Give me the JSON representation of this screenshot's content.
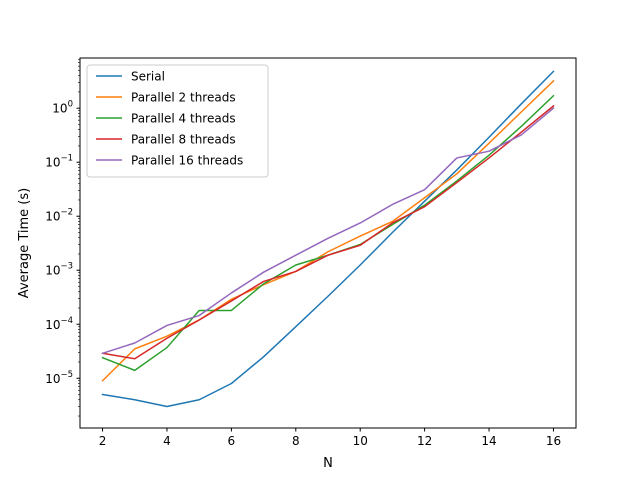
{
  "chart_data": {
    "type": "line",
    "xlabel": "N",
    "ylabel": "Average Time (s)",
    "yscale": "log",
    "xlim": [
      1.3,
      16.7
    ],
    "ylim": [
      1.2e-06,
      8.5
    ],
    "xticks": [
      2,
      4,
      6,
      8,
      10,
      12,
      14,
      16
    ],
    "xtick_labels": [
      "2",
      "4",
      "6",
      "8",
      "10",
      "12",
      "14",
      "16"
    ],
    "yticks": [
      1e-05,
      0.0001,
      0.001,
      0.01,
      0.1,
      1
    ],
    "ytick_labels": [
      {
        "base": "10",
        "exp": "−5"
      },
      {
        "base": "10",
        "exp": "−4"
      },
      {
        "base": "10",
        "exp": "−3"
      },
      {
        "base": "10",
        "exp": "−2"
      },
      {
        "base": "10",
        "exp": "−1"
      },
      {
        "base": "10",
        "exp": "0"
      }
    ],
    "grid": false,
    "legend_position": "top-left",
    "x": [
      2,
      3,
      4,
      5,
      6,
      7,
      8,
      9,
      10,
      11,
      12,
      13,
      14,
      15,
      16
    ],
    "series": [
      {
        "name": "Serial",
        "color": "#1f77b4",
        "values": [
          5e-06,
          4e-06,
          3e-06,
          4e-06,
          8e-06,
          2.5e-05,
          9e-05,
          0.00033,
          0.00125,
          0.005,
          0.019,
          0.072,
          0.29,
          1.2,
          4.8
        ]
      },
      {
        "name": "Parallel 2 threads",
        "color": "#ff7f0e",
        "values": [
          9e-06,
          3.5e-05,
          6e-05,
          0.00012,
          0.00029,
          0.00054,
          0.00095,
          0.0022,
          0.0043,
          0.008,
          0.022,
          0.061,
          0.225,
          0.85,
          3.2
        ]
      },
      {
        "name": "Parallel 4 threads",
        "color": "#2ca02c",
        "values": [
          2.4e-05,
          1.4e-05,
          3.7e-05,
          0.00018,
          0.00018,
          0.00056,
          0.00125,
          0.0019,
          0.003,
          0.007,
          0.016,
          0.045,
          0.135,
          0.46,
          1.7
        ]
      },
      {
        "name": "Parallel 8 threads",
        "color": "#d62728",
        "values": [
          2.9e-05,
          2.3e-05,
          5.5e-05,
          0.00012,
          0.00027,
          0.00062,
          0.00095,
          0.0019,
          0.0029,
          0.0075,
          0.015,
          0.042,
          0.12,
          0.36,
          1.1
        ]
      },
      {
        "name": "Parallel 16 threads",
        "color": "#9467bd",
        "values": [
          2.9e-05,
          4.5e-05,
          9.5e-05,
          0.000145,
          0.00038,
          0.00092,
          0.0019,
          0.0039,
          0.0075,
          0.0165,
          0.031,
          0.12,
          0.16,
          0.32,
          1.0
        ]
      }
    ]
  }
}
